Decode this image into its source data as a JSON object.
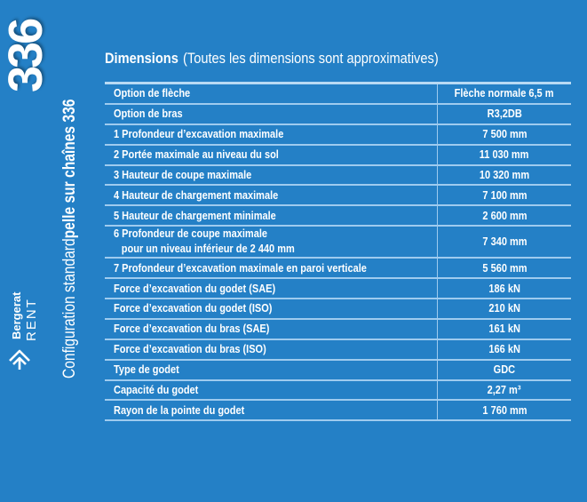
{
  "sidebar": {
    "model_number": "336",
    "title_prefix": "Configuration standard",
    "title_bold": "pelle sur chaînes 336",
    "logo_line1": "Bergerat",
    "logo_line2": "RENT"
  },
  "heading": {
    "bold": "Dimensions",
    "note": "(Toutes les dimensions sont approximatives)"
  },
  "table": {
    "rows": [
      {
        "label": "Option de flèche",
        "value": "Flèche normale 6,5 m"
      },
      {
        "label": "Option de bras",
        "value": "R3,2DB"
      },
      {
        "label": "1 Profondeur d’excavation maximale",
        "value": "7 500 mm"
      },
      {
        "label": "2 Portée maximale au niveau du sol",
        "value": "11 030 mm"
      },
      {
        "label": "3 Hauteur de coupe maximale",
        "value": "10 320 mm"
      },
      {
        "label": "4 Hauteur de chargement maximale",
        "value": "7 100 mm"
      },
      {
        "label": "5 Hauteur de chargement minimale",
        "value": "2 600 mm"
      },
      {
        "label": "6 Profondeur de coupe maximale",
        "label2": "pour un niveau inférieur de 2 440 mm",
        "value": "7 340 mm"
      },
      {
        "label": "7 Profondeur d’excavation maximale en paroi verticale",
        "value": "5 560 mm"
      },
      {
        "label": "Force d’excavation du godet (SAE)",
        "value": "186 kN"
      },
      {
        "label": "Force d’excavation du godet (ISO)",
        "value": "210 kN"
      },
      {
        "label": "Force d’excavation du bras (SAE)",
        "value": "161 kN"
      },
      {
        "label": "Force d’excavation du bras (ISO)",
        "value": "166 kN"
      },
      {
        "label": "Type de godet",
        "value": "GDC"
      },
      {
        "label": "Capacité du godet",
        "value": "2,27 m³"
      },
      {
        "label": "Rayon de la pointe du godet",
        "value": "1 760 mm"
      }
    ]
  }
}
